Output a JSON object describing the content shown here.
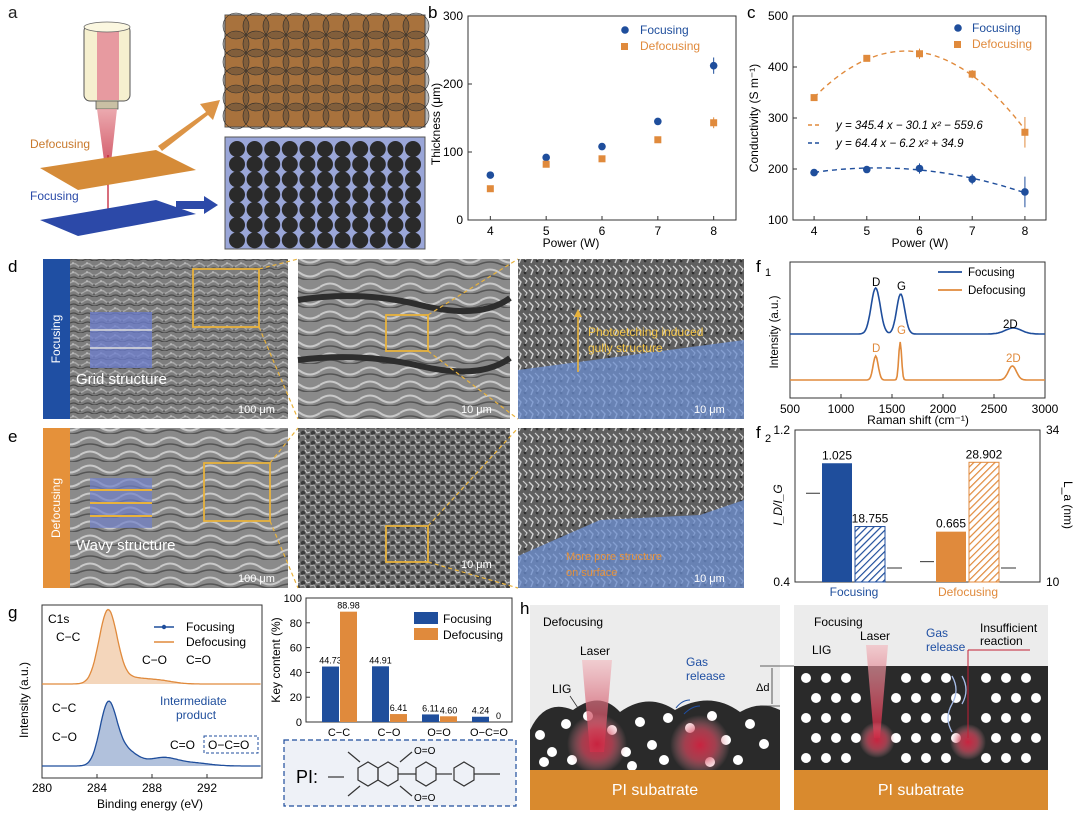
{
  "panel_letters": {
    "a": "a",
    "b": "b",
    "c": "c",
    "d": "d",
    "e": "e",
    "f1": "f",
    "f1_sub": "1",
    "f2": "f",
    "f2_sub": "2",
    "g": "g",
    "h": "h"
  },
  "colors": {
    "focusing": "#1f4e9c",
    "defocusing": "#e08a3c",
    "orange_fill": "#e3913f",
    "blue_fill": "#9aa6d8",
    "gold_box": "#e8b23c",
    "sem_label_blue": "#1f4fa3",
    "sem_label_orange": "#e5913a",
    "substrate": "#d98a2e"
  },
  "panel_a": {
    "defocusing_label": "Defocusing",
    "focusing_label": "Focusing"
  },
  "panel_d": {
    "side_label": "Focusing",
    "structure_label": "Grid structure",
    "scale1": "100 μm",
    "scale2": "10 μm",
    "scale3": "10 μm",
    "annotation_line1": "Photoetching induced",
    "annotation_line2": "gully structure"
  },
  "panel_e": {
    "side_label": "Defocusing",
    "structure_label": "Wavy structure",
    "scale1": "100 μm",
    "scale2": "10 μm",
    "scale3": "10 μm",
    "annotation_line1": "More pore structure",
    "annotation_line2": "on surface"
  },
  "panel_h": {
    "left_title": "Defocusing",
    "right_title": "Focusing",
    "laser": "Laser",
    "gas_release": "Gas release",
    "gas_line1": "Gas",
    "gas_line2": "release",
    "lig": "LIG",
    "delta_d": "Δd",
    "insufficient_line1": "Insufficient",
    "insufficient_line2": "reaction",
    "substrate": "PI subatrate"
  },
  "structure_box": {
    "label": "PI:",
    "o_eq": "O=O"
  },
  "chart_data": [
    {
      "id": "b",
      "type": "scatter",
      "xlabel": "Power (W)",
      "ylabel": "Thickness (μm)",
      "xlim": [
        3.6,
        8.4
      ],
      "ylim": [
        0,
        300
      ],
      "xticks": [
        4,
        5,
        6,
        7,
        8
      ],
      "yticks": [
        0,
        100,
        200,
        300
      ],
      "legend_position": "top-right",
      "series": [
        {
          "name": "Focusing",
          "x": [
            4,
            5,
            6,
            7,
            8
          ],
          "y": [
            66,
            92,
            108,
            145,
            227
          ],
          "err": [
            3,
            3,
            3,
            4,
            12
          ]
        },
        {
          "name": "Defocusing",
          "x": [
            4,
            5,
            6,
            7,
            8
          ],
          "y": [
            46,
            82,
            90,
            118,
            143
          ],
          "err": [
            3,
            3,
            3,
            4,
            8
          ]
        }
      ]
    },
    {
      "id": "c",
      "type": "scatter",
      "xlabel": "Power (W)",
      "ylabel": "Conductivity (S m⁻¹)",
      "xlim": [
        3.6,
        8.4
      ],
      "ylim": [
        100,
        500
      ],
      "xticks": [
        4,
        5,
        6,
        7,
        8
      ],
      "yticks": [
        100,
        200,
        300,
        400,
        500
      ],
      "legend_position": "top-right",
      "series": [
        {
          "name": "Focusing",
          "x": [
            4,
            5,
            6,
            7,
            8
          ],
          "y": [
            193,
            199,
            201,
            180,
            155
          ],
          "err": [
            4,
            5,
            10,
            10,
            30
          ],
          "fit": {
            "a": 64.4,
            "b": -6.2,
            "c": 34.9
          },
          "equation": "y = 64.4 x − 6.2 x² + 34.9"
        },
        {
          "name": "Defocusing",
          "x": [
            4,
            5,
            6,
            7,
            8
          ],
          "y": [
            340,
            417,
            426,
            386,
            272
          ],
          "err": [
            5,
            5,
            10,
            8,
            30
          ],
          "fit": {
            "a": 345.4,
            "b": -30.1,
            "c": -559.6
          },
          "equation": "y = 345.4 x − 30.1 x² − 559.6"
        }
      ]
    },
    {
      "id": "f1",
      "type": "line",
      "xlabel": "Raman shift (cm⁻¹)",
      "ylabel": "Intensity (a.u.)",
      "xlim": [
        500,
        3000
      ],
      "xticks": [
        500,
        1000,
        1500,
        2000,
        2500,
        3000
      ],
      "legend_position": "top-right",
      "series": [
        {
          "name": "Focusing"
        },
        {
          "name": "Defocusing"
        }
      ],
      "peak_labels": {
        "focusing": [
          "D",
          "G",
          "2D"
        ],
        "defocusing": [
          "D",
          "G",
          "2D"
        ]
      }
    },
    {
      "id": "f2",
      "type": "bar",
      "categories": [
        "Focusing",
        "Defocusing"
      ],
      "ylabel_left": "I_D/I_G",
      "ylabel_right": "L_a (nm)",
      "ylim_left": [
        0.4,
        1.2
      ],
      "yticks_left": [
        0.4,
        1.2
      ],
      "ylim_right": [
        10,
        34
      ],
      "yticks_right": [
        10,
        34
      ],
      "id_ig": [
        1.025,
        0.665
      ],
      "la": [
        18.755,
        28.902
      ],
      "value_labels": {
        "id_ig": [
          "1.025",
          "0.665"
        ],
        "la": [
          "18.755",
          "28.902"
        ]
      }
    },
    {
      "id": "g_spectrum",
      "type": "line",
      "xlabel": "Binding energy (eV)",
      "ylabel": "Intensity (a.u.)",
      "xlim": [
        280,
        296
      ],
      "xticks": [
        280,
        284,
        288,
        292
      ],
      "series": [
        {
          "name": "Focusing"
        },
        {
          "name": "Defocusing"
        }
      ],
      "labels": {
        "c1s": "C1s",
        "cc": "C−C",
        "co": "C−O",
        "ceo": "C=O",
        "intermediate_line1": "Intermediate",
        "intermediate_line2": "product",
        "oco": "O−C=O"
      }
    },
    {
      "id": "g_bar",
      "type": "bar",
      "ylabel": "Key content (%)",
      "ylim": [
        0,
        100
      ],
      "yticks": [
        0,
        20,
        40,
        60,
        80,
        100
      ],
      "categories": [
        "C−C",
        "C−O",
        "O=O",
        "O−C=O"
      ],
      "series": [
        {
          "name": "Focusing",
          "values": [
            44.73,
            44.91,
            6.11,
            4.24
          ],
          "labels": [
            "44.73",
            "44.91",
            "6.11",
            "4.24"
          ]
        },
        {
          "name": "Defocusing",
          "values": [
            88.98,
            6.41,
            4.6,
            0
          ],
          "labels": [
            "88.98",
            "6.41",
            "4.60",
            "0"
          ]
        }
      ]
    }
  ]
}
